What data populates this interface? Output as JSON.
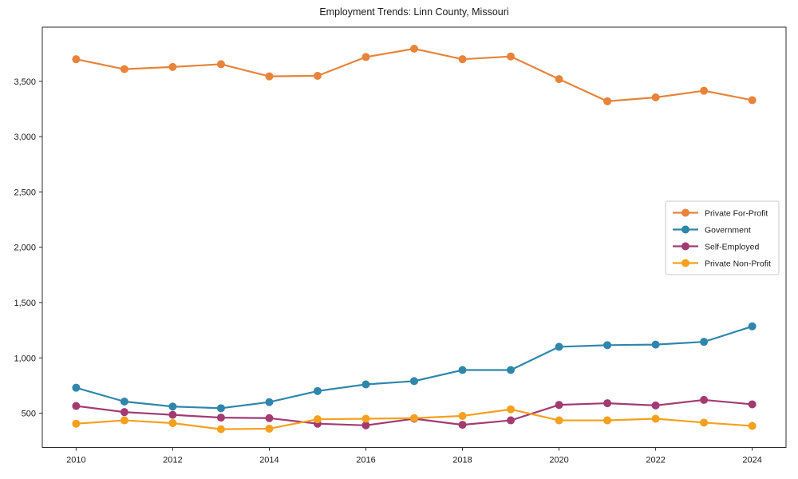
{
  "chart_data": {
    "type": "line",
    "title": "Employment Trends: Linn County, Missouri",
    "xlabel": "",
    "ylabel": "",
    "x": [
      2010,
      2011,
      2012,
      2013,
      2014,
      2015,
      2016,
      2017,
      2018,
      2019,
      2020,
      2021,
      2022,
      2023,
      2024
    ],
    "series": [
      {
        "name": "Private For-Profit",
        "color": "#E8833A",
        "values": [
          3700,
          3610,
          3630,
          3655,
          3545,
          3550,
          3720,
          3795,
          3700,
          3725,
          3520,
          3320,
          3355,
          3415,
          3330
        ]
      },
      {
        "name": "Government",
        "color": "#2E86AB",
        "values": [
          730,
          605,
          560,
          545,
          600,
          700,
          760,
          790,
          890,
          890,
          1100,
          1115,
          1120,
          1145,
          1285
        ]
      },
      {
        "name": "Self-Employed",
        "color": "#A23B72",
        "values": [
          565,
          510,
          485,
          460,
          455,
          405,
          390,
          450,
          395,
          435,
          575,
          590,
          570,
          620,
          580
        ]
      },
      {
        "name": "Private Non-Profit",
        "color": "#F5A01E",
        "values": [
          405,
          435,
          410,
          355,
          360,
          445,
          450,
          455,
          475,
          535,
          435,
          435,
          450,
          415,
          385
        ]
      }
    ],
    "xlim": [
      2009.3,
      2024.7
    ],
    "ylim": [
      190,
      3990
    ],
    "xticks": [
      {
        "value": 2010,
        "label": "2010"
      },
      {
        "value": 2012,
        "label": "2012"
      },
      {
        "value": 2014,
        "label": "2014"
      },
      {
        "value": 2016,
        "label": "2016"
      },
      {
        "value": 2018,
        "label": "2018"
      },
      {
        "value": 2020,
        "label": "2020"
      },
      {
        "value": 2022,
        "label": "2022"
      },
      {
        "value": 2024,
        "label": "2024"
      }
    ],
    "yticks": [
      {
        "value": 500,
        "label": "500"
      },
      {
        "value": 1000,
        "label": "1,000"
      },
      {
        "value": 1500,
        "label": "1,500"
      },
      {
        "value": 2000,
        "label": "2,000"
      },
      {
        "value": 2500,
        "label": "2,500"
      },
      {
        "value": 3000,
        "label": "3,000"
      },
      {
        "value": 3500,
        "label": "3,500"
      }
    ],
    "grid": false,
    "marker": "circle",
    "legend": {
      "position": "center-right",
      "border_color": "#c9c9c9",
      "background": "#ffffff"
    },
    "axis_color": "#2b2b2b"
  }
}
